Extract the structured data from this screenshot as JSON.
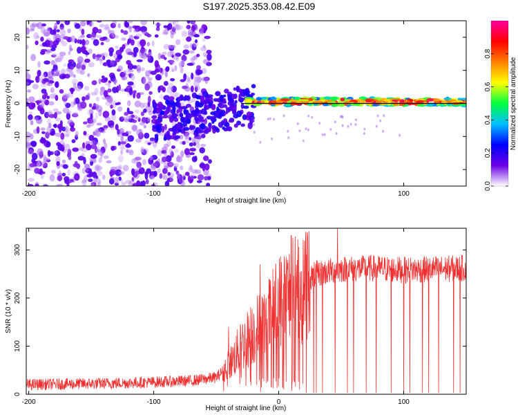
{
  "title": "S197.2025.353.08.42.E09",
  "chart_data": [
    {
      "type": "heatmap",
      "xlabel": "Height of straight line (km)",
      "ylabel": "Frequency (Hz)",
      "xlim": [
        -202,
        150
      ],
      "ylim": [
        -25,
        25
      ],
      "xticks": [
        -200,
        -100,
        0,
        100
      ],
      "yticks": [
        -20,
        -10,
        0,
        10,
        20
      ],
      "colorbar": {
        "label": "Normalized spectral amplitude",
        "range": [
          0,
          1
        ],
        "ticks": [
          "0.0",
          "0.2",
          "0.4",
          "0.6",
          "0.8"
        ],
        "tick_values": [
          0,
          0.2,
          0.4,
          0.6,
          0.8
        ],
        "colors": [
          "#ffffff",
          "#6b00e6",
          "#0000ff",
          "#00bfff",
          "#00ff40",
          "#ffff00",
          "#ff7f00",
          "#ff0000",
          "#ff00a0"
        ]
      },
      "signal_line_hz": 0,
      "regions": [
        {
          "name": "noise",
          "x_range": [
            -202,
            -55
          ],
          "freq_range": [
            -25,
            25
          ],
          "amplitude": 0.1
        },
        {
          "name": "transition",
          "x_range": [
            -100,
            -20
          ],
          "freq_range": [
            -12,
            4
          ],
          "amplitude": 0.25
        },
        {
          "name": "tone",
          "x_range": [
            -25,
            150
          ],
          "freq_range": [
            -1.5,
            2
          ],
          "amplitude": 0.85
        }
      ]
    },
    {
      "type": "line",
      "xlabel": "Height of straight line (km)",
      "ylabel": "SNR (10 * v/v)",
      "xlim": [
        -202,
        150
      ],
      "ylim": [
        0,
        345
      ],
      "xticks": [
        -200,
        -100,
        0,
        100
      ],
      "yticks": [
        0,
        100,
        200,
        300
      ],
      "color": "#ee3030",
      "series": [
        {
          "name": "SNR",
          "x": [
            -202,
            -150,
            -100,
            -70,
            -50,
            -40,
            -30,
            -20,
            -10,
            0,
            10,
            20,
            30,
            50,
            75,
            100,
            125,
            150
          ],
          "values": [
            20,
            22,
            25,
            28,
            35,
            60,
            100,
            130,
            150,
            190,
            210,
            235,
            250,
            260,
            262,
            258,
            260,
            262
          ]
        }
      ],
      "spikes": [
        {
          "x": -40,
          "value": 140
        },
        {
          "x": -15,
          "value": 270
        },
        {
          "x": -10,
          "value": 200
        },
        {
          "x": 10,
          "value": 330
        },
        {
          "x": 47,
          "value": 345
        },
        {
          "x": 18,
          "value": 255
        }
      ],
      "dropouts": [
        22,
        28,
        30,
        35,
        45,
        55,
        60,
        70,
        78,
        90,
        100,
        105,
        115,
        120,
        128,
        140,
        145
      ]
    }
  ]
}
